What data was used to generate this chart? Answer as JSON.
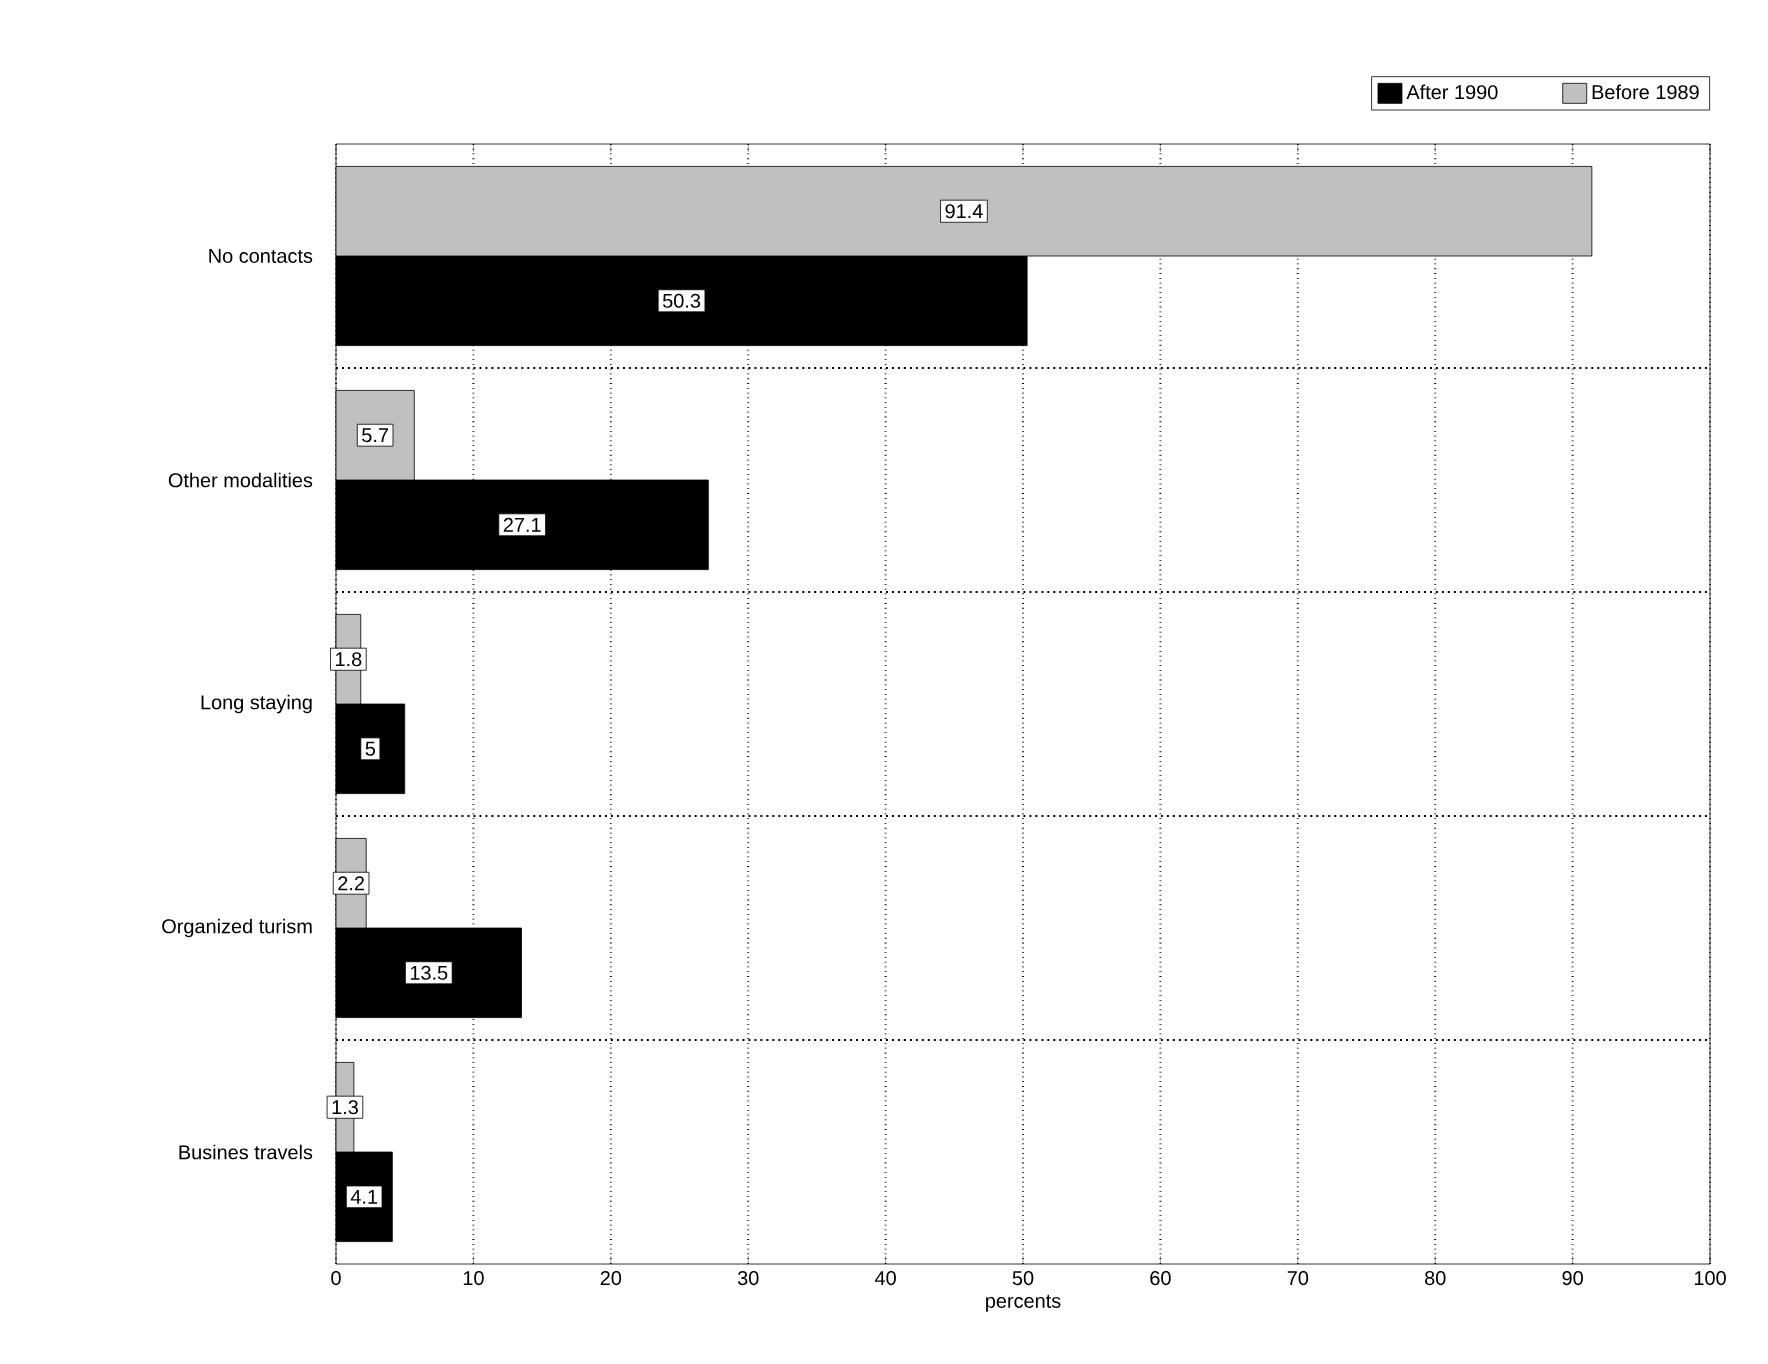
{
  "chart_data": {
    "type": "bar",
    "orientation": "horizontal",
    "xlabel": "percents",
    "categories": [
      "No contacts",
      "Other modalities",
      "Long staying",
      "Organized turism",
      "Busines travels"
    ],
    "series": [
      {
        "name": "After 1990",
        "color": "#000000",
        "values": [
          50.3,
          27.1,
          5,
          13.5,
          4.1
        ]
      },
      {
        "name": "Before 1989",
        "color": "#c0c0c0",
        "values": [
          91.4,
          5.7,
          1.8,
          2.2,
          1.3
        ]
      }
    ],
    "xlim": [
      0,
      100
    ],
    "xticks": [
      0,
      10,
      20,
      30,
      40,
      50,
      60,
      70,
      80,
      90,
      100
    ],
    "grid": true,
    "legend": "top right",
    "data_labels": true
  }
}
